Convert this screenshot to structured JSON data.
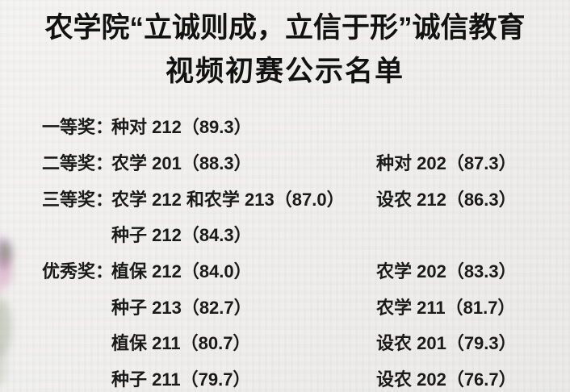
{
  "page": {
    "background_color": "#efeeec",
    "text_color": "#1a1a1a"
  },
  "title": {
    "line1": "农学院“立诚则成，立信于形”诚信教育",
    "line2": "视频初赛公示名单"
  },
  "awards": [
    {
      "label": "一等奖：",
      "col1": "种对 212（89.3）",
      "col2": ""
    },
    {
      "label": "二等奖：",
      "col1": "农学 201（88.3）",
      "col2": "种对 202（87.3）"
    },
    {
      "label": "三等奖：",
      "col1": "农学 212 和农学 213（87.0）",
      "col2": "设农 212（86.3）"
    },
    {
      "label": "",
      "col1": "种子 212（84.3）",
      "col2": ""
    },
    {
      "label": "优秀奖：",
      "col1": "植保 212（84.0）",
      "col2": "农学 202（83.3）"
    },
    {
      "label": "",
      "col1": "种子 213（82.7）",
      "col2": "农学 211（81.7）"
    },
    {
      "label": "",
      "col1": "植保 211（80.7）",
      "col2": "设农 201（79.3）"
    },
    {
      "label": "",
      "col1": "种子 211（79.7）",
      "col2": "设农 202（76.7）"
    }
  ],
  "decoration": {
    "description": "faint blurred floral cluster on left edge",
    "flower_colors": [
      "#b48cb8",
      "#d19cbe",
      "#e2b6cc"
    ],
    "leaf_colors": [
      "#6d7a58",
      "#96a084",
      "#a9b09d"
    ]
  }
}
